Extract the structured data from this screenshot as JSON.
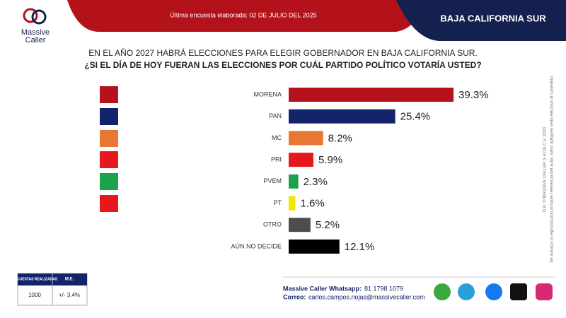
{
  "header": {
    "survey_date": "Última encuesta elaborada: 02 DE JULIO DEL 2025",
    "region": "BAJA CALIFORNIA SUR"
  },
  "brand": {
    "line1": "Massive",
    "line2": "Caller"
  },
  "question": {
    "line1": "EN EL AÑO 2027 HABRÁ ELECCIONES PARA ELEGIR GOBERNADOR EN BAJA CALIFORNIA SUR.",
    "line2": "¿SI EL DÍA DE HOY FUERAN LAS ELECCIONES POR CUÁL PARTIDO POLÍTICO VOTARÍA USTED?"
  },
  "chart_data": {
    "type": "hbar",
    "categories": [
      "MORENA",
      "PAN",
      "MC",
      "PRI",
      "PVEM",
      "PT",
      "OTRO",
      "AÚN NO DECIDE"
    ],
    "values": [
      39.3,
      25.4,
      8.2,
      5.9,
      2.3,
      1.6,
      5.2,
      12.1
    ],
    "value_labels": [
      "39.3%",
      "25.4%",
      "8.2%",
      "5.9%",
      "2.3%",
      "1.6%",
      "5.2%",
      "12.1%"
    ],
    "colors": [
      "#b5121b",
      "#14246b",
      "#e87733",
      "#e8171e",
      "#1aa34a",
      "#f2e500",
      "#4d4d4d",
      "#000000"
    ]
  },
  "table": {
    "headers": [
      "ENCUESTAS REALIZADAS",
      "M.E."
    ],
    "row": [
      "1000",
      "+/- 3.4%"
    ]
  },
  "footer": {
    "whatsapp_label": "Massive Caller Whatsapp:",
    "whatsapp": "81 1798 1079",
    "email_label": "Correo:",
    "email": "carlos.campos.riojas@massivecaller.com"
  },
  "legal": {
    "line1": "D.R. © MASSIVE CALLER S.A DE C.V. 2024",
    "line2": "Se autoriza la reproducción al hacer referencia del autor, salvo apliquen veda electoral al contenido"
  }
}
